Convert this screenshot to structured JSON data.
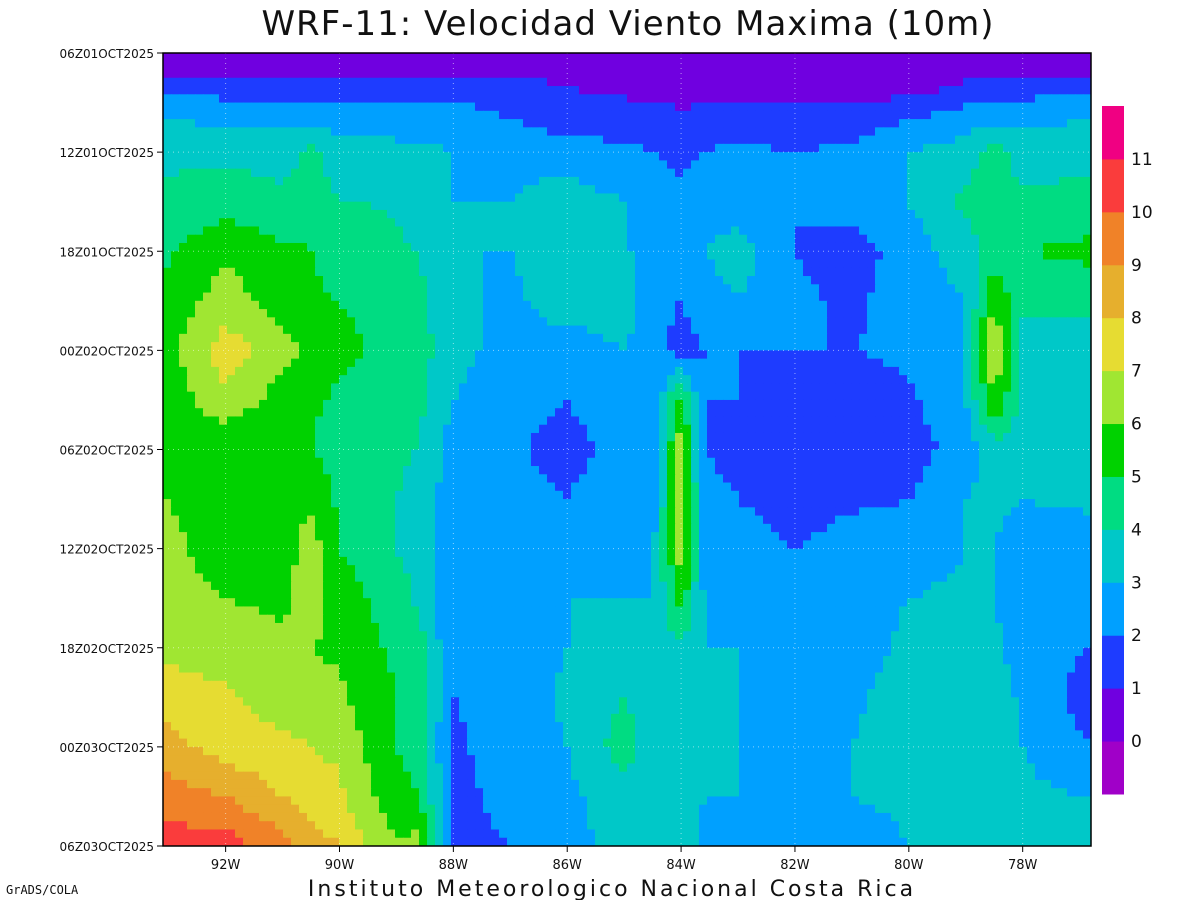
{
  "chart_data": {
    "type": "heatmap",
    "title": "WRF-11: Velocidad  Viento Maxima (10m)",
    "footer": "Instituto Meteorologico Nacional Costa Rica",
    "credit": "GrADS/COLA",
    "x_axis": {
      "range": [
        -93.1,
        -76.8
      ],
      "ticks": [
        -92,
        -90,
        -88,
        -86,
        -84,
        -82,
        -80,
        -78
      ],
      "tick_labels": [
        "92W",
        "90W",
        "88W",
        "86W",
        "84W",
        "82W",
        "80W",
        "78W"
      ]
    },
    "y_axis": {
      "tick_labels": [
        "06Z01OCT2025",
        "12Z01OCT2025",
        "18Z01OCT2025",
        "00Z02OCT2025",
        "06Z02OCT2025",
        "12Z02OCT2025",
        "18Z02OCT2025",
        "00Z03OCT2025",
        "06Z03OCT2025"
      ],
      "hours": [
        0,
        6,
        12,
        18,
        24,
        30,
        36,
        42,
        48
      ],
      "direction": "time increases downward"
    },
    "grid": true,
    "colorbar": {
      "levels": [
        0,
        1,
        2,
        3,
        4,
        5,
        6,
        7,
        8,
        9,
        10,
        11
      ],
      "colors": [
        "#a000c8",
        "#7000e0",
        "#1e3cff",
        "#00a0ff",
        "#00c8c8",
        "#00dc82",
        "#00d200",
        "#a0e632",
        "#e6dc32",
        "#e6af2d",
        "#f08228",
        "#fa3c3c",
        "#f00082"
      ]
    },
    "columns_lon": [
      -93.1,
      -92.0,
      -91.0,
      -90.5,
      -90.0,
      -89.5,
      -89.0,
      -88.6,
      -88.0,
      -87.0,
      -86.0,
      -85.0,
      -84.5,
      -84.0,
      -83.6,
      -83.0,
      -82.0,
      -81.0,
      -80.0,
      -79.0,
      -78.5,
      -78.0,
      -76.8
    ],
    "grid_rows": [
      {
        "hour": 0,
        "values": [
          0,
          0,
          0,
          0,
          0,
          0,
          0,
          0,
          0,
          0,
          0,
          0,
          0,
          0,
          0,
          0,
          0,
          0,
          0,
          0,
          0,
          0,
          0
        ]
      },
      {
        "hour": 2,
        "values": [
          1.5,
          1.5,
          1.5,
          1.5,
          1.5,
          1.5,
          1.5,
          1.5,
          1.5,
          1.5,
          1.0,
          0.7,
          0.5,
          0.5,
          0.5,
          0.7,
          0.6,
          0.5,
          0.5,
          1.2,
          1.5,
          1.5,
          1.5
        ]
      },
      {
        "hour": 4,
        "values": [
          3.0,
          2.8,
          2.8,
          2.8,
          2.6,
          2.5,
          2.5,
          2.5,
          2.5,
          2.0,
          1.5,
          1.5,
          1.5,
          1.2,
          1.5,
          1.5,
          1.5,
          1.5,
          2.0,
          2.5,
          2.8,
          2.8,
          3.0
        ]
      },
      {
        "hour": 6,
        "values": [
          3.8,
          3.8,
          3.6,
          4.2,
          3.5,
          3.5,
          3.3,
          3.2,
          3.0,
          2.8,
          2.5,
          2.2,
          2.0,
          1.8,
          2.0,
          2.2,
          2.0,
          2.2,
          3.0,
          3.5,
          4.5,
          3.5,
          3.5
        ]
      },
      {
        "hour": 9,
        "values": [
          4.2,
          4.5,
          4.2,
          4.6,
          4.0,
          4.0,
          3.8,
          3.5,
          3.0,
          3.0,
          3.5,
          3.0,
          2.5,
          2.2,
          2.5,
          2.5,
          2.0,
          2.5,
          3.0,
          4.2,
          4.5,
          4.2,
          4.5
        ]
      },
      {
        "hour": 12,
        "values": [
          4.8,
          5.8,
          5.2,
          5.0,
          4.5,
          4.5,
          4.2,
          4.0,
          3.0,
          3.0,
          3.8,
          3.0,
          3.0,
          2.5,
          3.0,
          3.5,
          2.0,
          1.5,
          2.5,
          3.5,
          4.5,
          5.0,
          5.2
        ]
      },
      {
        "hour": 15,
        "values": [
          5.2,
          6.5,
          5.5,
          5.2,
          5.0,
          4.8,
          4.5,
          4.2,
          3.2,
          2.8,
          3.5,
          3.5,
          2.5,
          2.0,
          2.5,
          3.0,
          2.2,
          1.8,
          2.5,
          3.0,
          5.8,
          4.2,
          4.5
        ]
      },
      {
        "hour": 18,
        "values": [
          5.5,
          7.5,
          6.5,
          5.5,
          5.3,
          5.0,
          4.8,
          4.5,
          3.2,
          2.8,
          2.5,
          3.0,
          2.5,
          1.5,
          2.0,
          2.0,
          2.0,
          2.0,
          2.2,
          3.0,
          7.2,
          3.5,
          3.0
        ]
      },
      {
        "hour": 21,
        "values": [
          5.2,
          6.8,
          5.5,
          5.2,
          4.8,
          4.5,
          4.5,
          4.2,
          3.0,
          2.5,
          2.0,
          3.0,
          2.0,
          5.5,
          2.0,
          2.0,
          1.5,
          1.5,
          1.8,
          3.0,
          6.0,
          3.5,
          3.0
        ]
      },
      {
        "hour": 24,
        "values": [
          5.8,
          5.0,
          5.0,
          5.0,
          4.5,
          4.2,
          4.2,
          4.0,
          2.5,
          2.2,
          1.5,
          2.5,
          2.2,
          6.8,
          2.0,
          1.5,
          1.2,
          1.0,
          1.5,
          2.5,
          3.5,
          3.5,
          3.2
        ]
      },
      {
        "hour": 27,
        "values": [
          6.0,
          5.5,
          5.5,
          5.8,
          4.8,
          4.5,
          4.0,
          3.5,
          2.5,
          2.5,
          2.0,
          3.0,
          2.5,
          6.5,
          2.5,
          2.0,
          1.5,
          1.8,
          2.0,
          3.0,
          3.2,
          3.0,
          3.2
        ]
      },
      {
        "hour": 30,
        "values": [
          6.5,
          5.2,
          5.5,
          6.5,
          5.0,
          4.5,
          4.0,
          3.5,
          2.5,
          3.0,
          2.5,
          3.0,
          2.8,
          6.5,
          2.5,
          2.5,
          2.0,
          2.5,
          2.5,
          3.0,
          3.0,
          2.5,
          2.5
        ]
      },
      {
        "hour": 33,
        "values": [
          6.5,
          6.0,
          5.8,
          6.5,
          5.5,
          5.0,
          4.5,
          3.8,
          2.0,
          3.0,
          3.0,
          3.0,
          3.0,
          5.5,
          3.0,
          2.8,
          2.5,
          2.8,
          3.0,
          3.2,
          3.0,
          2.5,
          2.2
        ]
      },
      {
        "hour": 36,
        "values": [
          6.8,
          6.5,
          6.2,
          6.0,
          5.8,
          5.2,
          4.8,
          4.5,
          2.0,
          2.5,
          3.0,
          3.5,
          3.5,
          3.8,
          3.0,
          3.0,
          2.5,
          2.5,
          3.2,
          3.5,
          3.2,
          2.5,
          2.0
        ]
      },
      {
        "hour": 39,
        "values": [
          7.5,
          7.2,
          6.5,
          6.5,
          6.2,
          5.5,
          5.0,
          4.5,
          2.0,
          2.5,
          3.2,
          4.0,
          3.5,
          3.5,
          3.0,
          3.0,
          2.8,
          2.8,
          3.5,
          3.5,
          3.5,
          2.8,
          1.5
        ]
      },
      {
        "hour": 42,
        "values": [
          8.5,
          7.5,
          7.2,
          7.0,
          6.8,
          5.8,
          5.0,
          4.5,
          1.8,
          2.5,
          3.0,
          4.5,
          3.5,
          3.8,
          3.0,
          3.0,
          3.0,
          3.0,
          3.5,
          3.5,
          3.5,
          3.0,
          2.0
        ]
      },
      {
        "hour": 45,
        "values": [
          9.5,
          9.0,
          8.0,
          7.5,
          7.2,
          6.2,
          5.5,
          5.0,
          1.8,
          2.2,
          2.8,
          3.5,
          3.0,
          3.5,
          3.0,
          3.0,
          2.8,
          3.0,
          3.2,
          3.5,
          3.5,
          3.2,
          3.0
        ]
      },
      {
        "hour": 48,
        "values": [
          10.5,
          10.5,
          9.5,
          8.5,
          8.0,
          7.0,
          6.0,
          6.5,
          1.8,
          2.0,
          2.8,
          3.2,
          3.0,
          3.5,
          2.8,
          2.5,
          2.2,
          2.5,
          3.0,
          3.2,
          3.0,
          3.0,
          3.5
        ]
      }
    ]
  }
}
